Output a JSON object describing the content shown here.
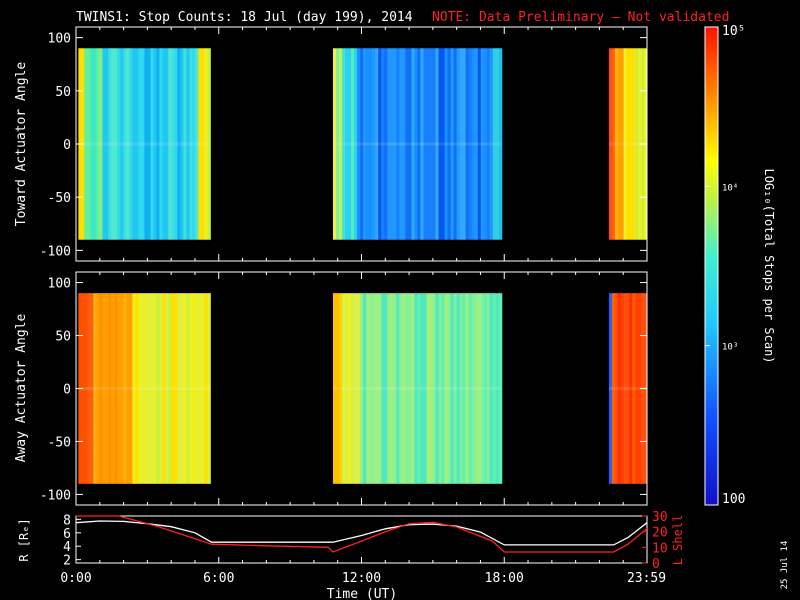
{
  "title": "TWINS1: Stop Counts: 18 Jul (day 199), 2014",
  "note": "NOTE: Data Preliminary — Not validated",
  "date_stamp": "25 Jul 14",
  "colors": {
    "background": "#000000",
    "note": "#ff2020",
    "r_line": "#ffffff",
    "lshell_line": "#ff2020",
    "axes": "#ffffff"
  },
  "chart_data": [
    {
      "type": "heatmap",
      "name": "toward",
      "ylabel": "Toward Actuator Angle",
      "ylim": [
        -110,
        110
      ],
      "yticks": [
        100,
        50,
        0,
        -50,
        -100
      ],
      "xlim": [
        0,
        24
      ],
      "angle_range": [
        -90,
        90
      ],
      "segments": [
        {
          "start": 0.1,
          "end": 5.65,
          "level": "cyan"
        },
        {
          "start": 10.8,
          "end": 17.9,
          "level": "blue"
        },
        {
          "start": 22.4,
          "end": 24.0,
          "level": "orange"
        }
      ]
    },
    {
      "type": "heatmap",
      "name": "away",
      "ylabel": "Away Actuator Angle",
      "ylim": [
        -110,
        110
      ],
      "yticks": [
        100,
        50,
        0,
        -50,
        -100
      ],
      "xlim": [
        0,
        24
      ],
      "angle_range": [
        -90,
        90
      ],
      "segments": [
        {
          "start": 0.1,
          "end": 5.65,
          "level": "orange"
        },
        {
          "start": 10.8,
          "end": 17.9,
          "level": "green"
        },
        {
          "start": 22.4,
          "end": 24.0,
          "level": "red"
        }
      ]
    },
    {
      "type": "line",
      "name": "orbit",
      "xlabel": "Time (UT)",
      "xlim": [
        0,
        24
      ],
      "xticks": [
        {
          "value": 0,
          "label": "0:00"
        },
        {
          "value": 6,
          "label": "6:00"
        },
        {
          "value": 12,
          "label": "12:00"
        },
        {
          "value": 18,
          "label": "18:00"
        },
        {
          "value": 23.98,
          "label": "23:59"
        }
      ],
      "left_axis": {
        "label": "R [Rₑ]",
        "ylim": [
          1.5,
          8.5
        ],
        "yticks": [
          8,
          6,
          4,
          2
        ]
      },
      "right_axis": {
        "label": "L Shell",
        "ylim": [
          0,
          30
        ],
        "yticks": [
          30,
          20,
          10,
          0
        ]
      },
      "series": [
        {
          "name": "R",
          "axis": "left",
          "x": [
            0,
            1,
            2,
            3,
            4,
            5,
            5.7,
            7,
            9,
            10.8,
            12,
            13,
            14,
            15,
            16,
            17,
            18,
            19,
            21,
            22.6,
            23.2,
            24
          ],
          "y": [
            7.5,
            7.75,
            7.7,
            7.35,
            6.9,
            6.0,
            4.6,
            4.6,
            4.6,
            4.6,
            5.6,
            6.6,
            7.2,
            7.3,
            7.0,
            6.1,
            4.2,
            4.2,
            4.2,
            4.2,
            5.3,
            7.5
          ]
        },
        {
          "name": "L Shell",
          "axis": "right",
          "x": [
            0,
            1.8,
            3.5,
            5.7,
            8,
            10.6,
            10.8,
            12,
            13,
            14,
            15,
            16,
            17.5,
            18,
            20,
            22.6,
            23.2,
            24
          ],
          "y": [
            30,
            30,
            23,
            12,
            11,
            10,
            7,
            14,
            20,
            25,
            26,
            23,
            14,
            7,
            7,
            7,
            12,
            22
          ]
        }
      ]
    }
  ],
  "colorbar": {
    "label": "LOG₁₀(Total Stops per Scan)",
    "tick_labels": [
      "10⁵",
      "10⁴",
      "10³",
      "100"
    ],
    "range": [
      100,
      100000
    ],
    "scale": "log"
  }
}
